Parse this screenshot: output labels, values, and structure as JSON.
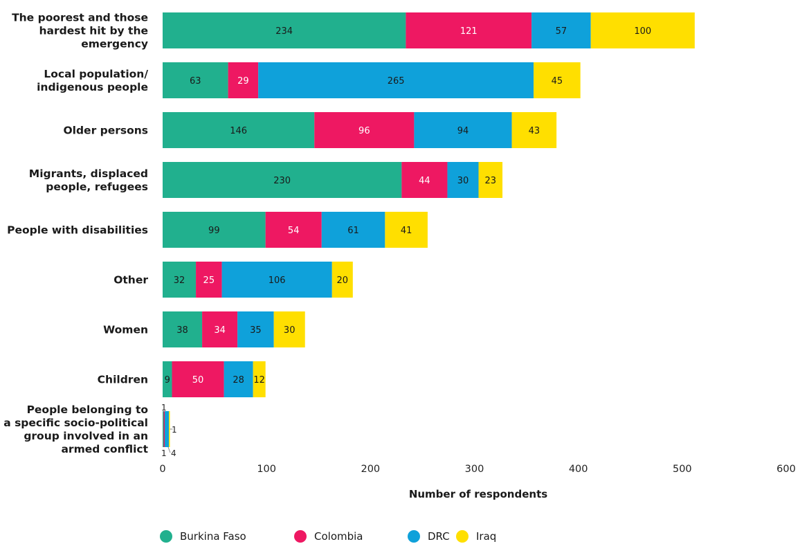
{
  "chart_data": {
    "type": "bar",
    "orientation": "horizontal",
    "stacked": true,
    "categories": [
      "The poorest and those hardest hit by the emergency",
      "Local population/ indigenous people",
      "Older persons",
      "Migrants, displaced people, refugees",
      "People with disabilities",
      "Other",
      "Women",
      "Children",
      "People belonging to a specific socio-political group involved in an armed conflict"
    ],
    "series": [
      {
        "name": "Burkina Faso",
        "color": "#21b08e",
        "values": [
          234,
          63,
          146,
          230,
          99,
          32,
          38,
          9,
          1
        ]
      },
      {
        "name": "Colombia",
        "color": "#ee1862",
        "values": [
          121,
          29,
          96,
          44,
          54,
          25,
          34,
          50,
          1
        ]
      },
      {
        "name": "DRC",
        "color": "#0fa1da",
        "values": [
          57,
          265,
          94,
          30,
          61,
          106,
          35,
          28,
          4
        ]
      },
      {
        "name": "Iraq",
        "color": "#ffdf00",
        "values": [
          100,
          45,
          43,
          23,
          41,
          20,
          30,
          12,
          1
        ]
      }
    ],
    "xlabel": "Number of respondents",
    "xlim": [
      0,
      600
    ],
    "xticks": [
      0,
      100,
      200,
      300,
      400,
      500,
      600
    ],
    "grid": false,
    "legend_position": "bottom"
  }
}
